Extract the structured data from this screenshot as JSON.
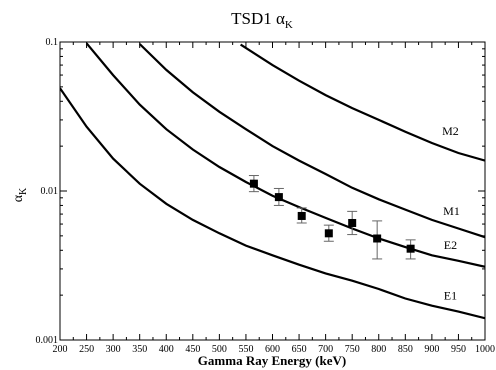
{
  "chart_data": {
    "type": "line",
    "title": "TSD1 α",
    "title_subscript": "K",
    "xlabel": "Gamma Ray Energy (keV)",
    "ylabel": "α",
    "ylabel_subscript": "K",
    "xlim": [
      200,
      1000
    ],
    "ylim": [
      0.001,
      0.1
    ],
    "yscale": "log",
    "grid": false,
    "x_ticks": [
      "200",
      "250",
      "300",
      "350",
      "400",
      "450",
      "500",
      "550",
      "600",
      "650",
      "700",
      "750",
      "800",
      "850",
      "900",
      "950",
      "1000"
    ],
    "y_ticks": [
      {
        "value": 0.001,
        "label": "0.001"
      },
      {
        "value": 0.01,
        "label": "0.01"
      },
      {
        "value": 0.1,
        "label": "0.1"
      }
    ],
    "series": [
      {
        "name": "M2",
        "x": [
          540,
          600,
          650,
          700,
          750,
          800,
          850,
          900,
          950,
          1000
        ],
        "y": [
          0.096,
          0.07,
          0.055,
          0.044,
          0.036,
          0.03,
          0.025,
          0.021,
          0.018,
          0.016
        ]
      },
      {
        "name": "M1",
        "x": [
          350,
          400,
          450,
          500,
          550,
          600,
          650,
          700,
          750,
          800,
          850,
          900,
          950,
          1000
        ],
        "y": [
          0.097,
          0.065,
          0.046,
          0.034,
          0.026,
          0.02,
          0.016,
          0.013,
          0.0105,
          0.0088,
          0.0075,
          0.0064,
          0.0056,
          0.0049
        ]
      },
      {
        "name": "E2",
        "x": [
          250,
          300,
          350,
          400,
          450,
          500,
          550,
          600,
          650,
          700,
          750,
          800,
          850,
          900,
          950,
          1000
        ],
        "y": [
          0.098,
          0.06,
          0.038,
          0.026,
          0.019,
          0.0145,
          0.0115,
          0.0093,
          0.0078,
          0.0066,
          0.0056,
          0.0048,
          0.0042,
          0.0037,
          0.0034,
          0.0031
        ]
      },
      {
        "name": "E1",
        "x": [
          200,
          250,
          300,
          350,
          400,
          450,
          500,
          550,
          600,
          650,
          700,
          750,
          800,
          850,
          900,
          950,
          1000
        ],
        "y": [
          0.049,
          0.027,
          0.0165,
          0.0112,
          0.0082,
          0.0064,
          0.0052,
          0.0043,
          0.0037,
          0.0032,
          0.0028,
          0.0025,
          0.0022,
          0.0019,
          0.0017,
          0.00155,
          0.0014
        ]
      }
    ],
    "data_points": [
      {
        "x": 565,
        "y": 0.0112,
        "yerr_low": 0.0099,
        "yerr_high": 0.0127
      },
      {
        "x": 612,
        "y": 0.0091,
        "yerr_low": 0.008,
        "yerr_high": 0.0104
      },
      {
        "x": 655,
        "y": 0.0068,
        "yerr_low": 0.0061,
        "yerr_high": 0.0077
      },
      {
        "x": 706,
        "y": 0.0052,
        "yerr_low": 0.0046,
        "yerr_high": 0.0059
      },
      {
        "x": 750,
        "y": 0.0061,
        "yerr_low": 0.0051,
        "yerr_high": 0.0073
      },
      {
        "x": 797,
        "y": 0.0048,
        "yerr_low": 0.0035,
        "yerr_high": 0.0063
      },
      {
        "x": 860,
        "y": 0.0041,
        "yerr_low": 0.0035,
        "yerr_high": 0.0047
      }
    ]
  }
}
